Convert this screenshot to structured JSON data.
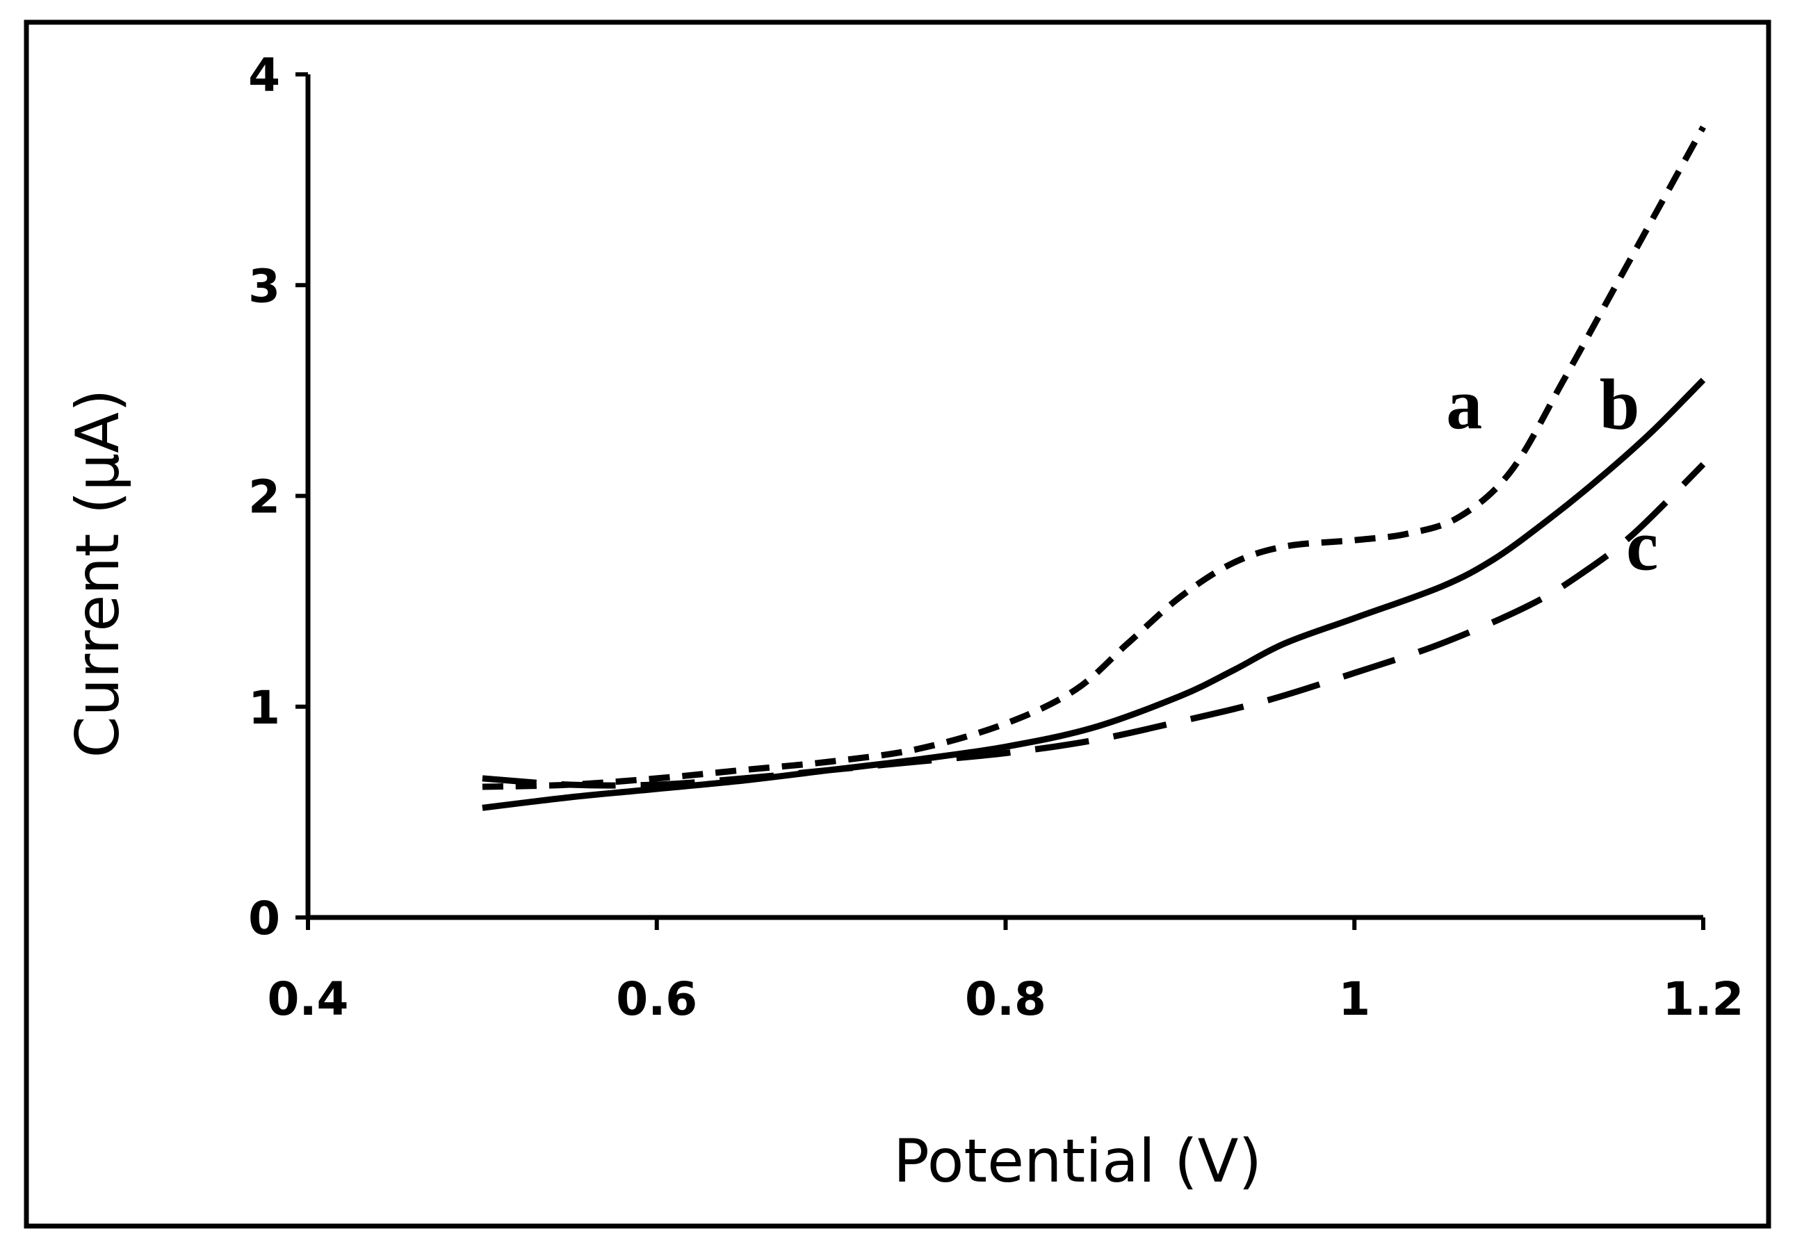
{
  "chart_data": {
    "type": "line",
    "title": "",
    "xlabel": "Potential (V)",
    "ylabel": "Current (μA)",
    "xlim": [
      0.4,
      1.2
    ],
    "ylim": [
      0,
      4
    ],
    "xticks": [
      0.4,
      0.6,
      0.8,
      1.0,
      1.2
    ],
    "xtick_labels": [
      "0.4",
      "0.6",
      "0.8",
      "1",
      "1.2"
    ],
    "yticks": [
      0,
      1,
      2,
      3,
      4
    ],
    "ytick_labels": [
      "0",
      "1",
      "2",
      "3",
      "4"
    ],
    "grid": false,
    "series": [
      {
        "name": "a",
        "style": "short-dash",
        "x": [
          0.5,
          0.55,
          0.6,
          0.65,
          0.7,
          0.75,
          0.8,
          0.84,
          0.87,
          0.9,
          0.93,
          0.96,
          1.0,
          1.03,
          1.06,
          1.09,
          1.12,
          1.15,
          1.18,
          1.2
        ],
        "y": [
          0.62,
          0.63,
          0.66,
          0.7,
          0.74,
          0.8,
          0.92,
          1.08,
          1.3,
          1.52,
          1.68,
          1.76,
          1.79,
          1.82,
          1.9,
          2.12,
          2.55,
          3.0,
          3.45,
          3.75
        ]
      },
      {
        "name": "b",
        "style": "solid",
        "x": [
          0.5,
          0.55,
          0.6,
          0.65,
          0.7,
          0.75,
          0.8,
          0.85,
          0.9,
          0.93,
          0.96,
          1.0,
          1.05,
          1.08,
          1.11,
          1.14,
          1.17,
          1.2
        ],
        "y": [
          0.52,
          0.57,
          0.61,
          0.65,
          0.7,
          0.75,
          0.81,
          0.9,
          1.05,
          1.17,
          1.3,
          1.42,
          1.57,
          1.7,
          1.88,
          2.08,
          2.3,
          2.55
        ]
      },
      {
        "name": "c",
        "style": "long-dash",
        "x": [
          0.5,
          0.55,
          0.6,
          0.65,
          0.7,
          0.75,
          0.8,
          0.85,
          0.9,
          0.95,
          1.0,
          1.05,
          1.1,
          1.13,
          1.16,
          1.2
        ],
        "y": [
          0.66,
          0.63,
          0.63,
          0.66,
          0.7,
          0.74,
          0.78,
          0.84,
          0.93,
          1.03,
          1.16,
          1.3,
          1.48,
          1.63,
          1.82,
          2.15
        ]
      }
    ],
    "series_labels": [
      {
        "text": "a",
        "x": 1.063,
        "y": 2.32
      },
      {
        "text": "b",
        "x": 1.152,
        "y": 2.32
      },
      {
        "text": "c",
        "x": 1.165,
        "y": 1.65
      }
    ]
  }
}
